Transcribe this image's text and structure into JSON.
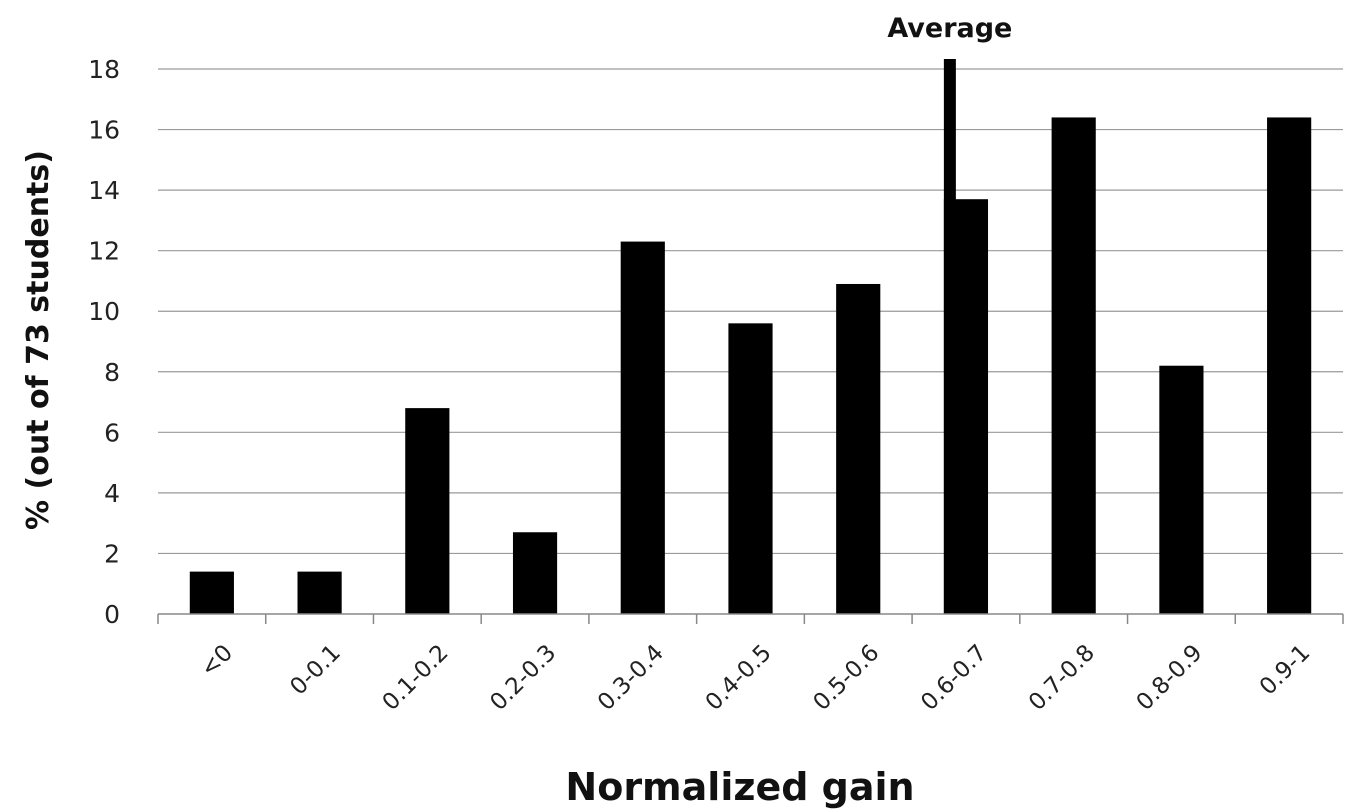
{
  "chart_data": {
    "type": "bar",
    "categories": [
      "<0",
      "0-0.1",
      "0.1-0.2",
      "0.2-0.3",
      "0.3-0.4",
      "0.4-0.5",
      "0.5-0.6",
      "0.6-0.7",
      "0.7-0.8",
      "0.8-0.9",
      "0.9-1"
    ],
    "values": [
      1.4,
      1.4,
      6.8,
      2.7,
      12.3,
      9.6,
      10.9,
      13.7,
      16.4,
      8.2,
      16.4
    ],
    "ylabel": "% (out of 73 students)",
    "xlabel": "Normalized gain",
    "ylim": [
      0,
      18
    ],
    "yticks": [
      0,
      2,
      4,
      6,
      8,
      10,
      12,
      14,
      16,
      18
    ],
    "grid": true,
    "bar_color": "#000000",
    "grid_color": "#9a9a9a",
    "annotations": [
      {
        "text": "Average",
        "category": "0.6-0.7"
      }
    ]
  }
}
